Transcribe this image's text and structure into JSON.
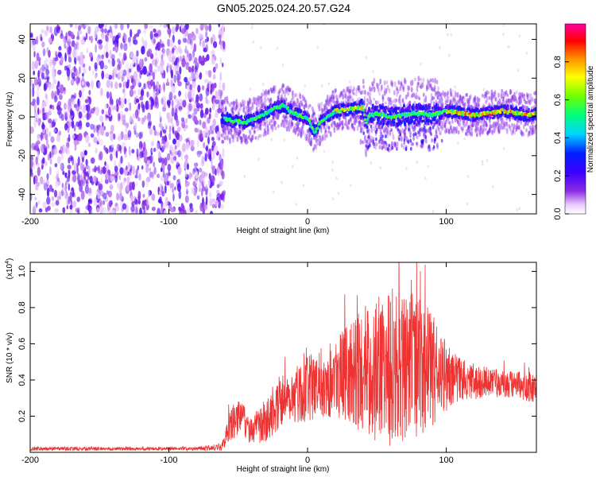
{
  "title": "GN05.2025.024.20.57.G24",
  "chart_data": [
    {
      "type": "heatmap",
      "title": "GN05.2025.024.20.57.G24",
      "xlabel": "Height of straight line (km)",
      "ylabel": "Frequency (Hz)",
      "xlim": [
        -200,
        165
      ],
      "ylim": [
        -50,
        48
      ],
      "xticks": [
        "-200",
        "-100",
        "0",
        "100"
      ],
      "yticks": [
        "-40",
        "-20",
        "0",
        "20",
        "40"
      ],
      "noise_region_x": [
        -200,
        -62
      ],
      "ridge": {
        "x": [
          -62,
          -55,
          -45,
          -35,
          -25,
          -18,
          -10,
          0,
          5,
          10,
          20,
          30,
          40,
          42,
          45,
          50,
          60,
          70,
          80,
          90,
          100,
          110,
          120,
          130,
          140,
          150,
          160,
          165
        ],
        "frequency": [
          0,
          -2,
          -3,
          0,
          4,
          6,
          2,
          -1,
          -8,
          -2,
          3,
          4,
          5,
          -3,
          1,
          2,
          0,
          1,
          2,
          1,
          3,
          2,
          1,
          2,
          3,
          2,
          1,
          2
        ]
      },
      "colorbar": {
        "label": "Normalized spectral amplitude",
        "range": [
          0.0,
          1.0
        ],
        "ticks": [
          "0.0",
          "0.2",
          "0.4",
          "0.6",
          "0.8"
        ]
      },
      "grid": false
    },
    {
      "type": "line",
      "xlabel": "Height of straight line (km)",
      "ylabel": "SNR (10 * v/v)",
      "ylabel_multiplier": "(x10",
      "ylabel_multiplier_exp": "4",
      "ylabel_multiplier_close": ")",
      "xlim": [
        -200,
        165
      ],
      "ylim": [
        0,
        1.05
      ],
      "xticks": [
        "-200",
        "-100",
        "0",
        "100"
      ],
      "yticks": [
        "0.2",
        "0.4",
        "0.6",
        "0.8",
        "1.0"
      ],
      "series": [
        {
          "color": "#ee3333",
          "x": [
            -200,
            -160,
            -120,
            -80,
            -62,
            -55,
            -50,
            -40,
            -30,
            -20,
            -10,
            0,
            10,
            20,
            30,
            40,
            50,
            60,
            70,
            80,
            90,
            100,
            110,
            120,
            130,
            140,
            150,
            160,
            165
          ],
          "y": [
            0.02,
            0.02,
            0.02,
            0.02,
            0.03,
            0.15,
            0.2,
            0.12,
            0.18,
            0.28,
            0.32,
            0.35,
            0.38,
            0.42,
            0.44,
            0.45,
            0.46,
            0.48,
            0.48,
            0.47,
            0.45,
            0.42,
            0.4,
            0.39,
            0.39,
            0.38,
            0.37,
            0.36,
            0.35
          ],
          "amplitude": [
            0.01,
            0.01,
            0.01,
            0.01,
            0.02,
            0.1,
            0.1,
            0.08,
            0.12,
            0.15,
            0.16,
            0.18,
            0.2,
            0.22,
            0.28,
            0.35,
            0.4,
            0.45,
            0.42,
            0.4,
            0.32,
            0.2,
            0.12,
            0.1,
            0.08,
            0.08,
            0.08,
            0.08,
            0.08
          ]
        }
      ],
      "grid": false
    }
  ]
}
